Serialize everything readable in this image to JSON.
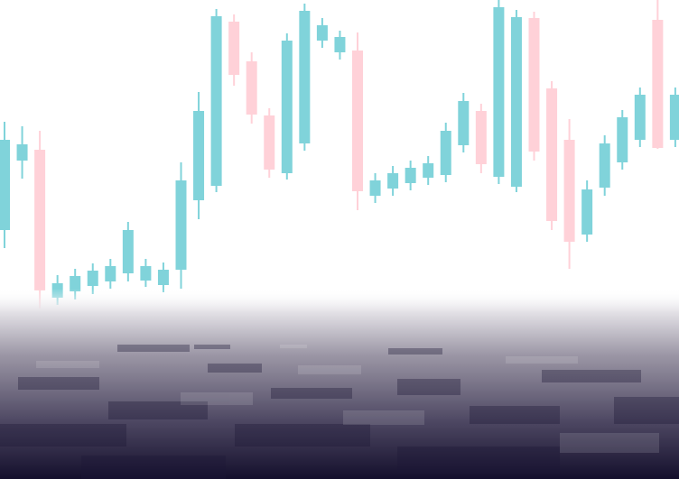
{
  "chart_data": {
    "type": "candlestick",
    "up_color": "#80d3da",
    "down_color": "#ffd1d8",
    "ylim": [
      0,
      531
    ],
    "open": [
      276,
      353,
      365,
      201,
      208,
      214,
      219,
      228,
      220,
      215,
      232,
      309,
      325,
      507,
      463,
      403,
      339,
      372,
      486,
      473,
      475,
      314,
      322,
      328,
      334,
      337,
      370,
      408,
      335,
      324,
      511,
      433,
      376,
      271,
      323,
      351,
      376,
      509,
      376
    ],
    "high": [
      396,
      391,
      386,
      226,
      233,
      239,
      244,
      285,
      244,
      240,
      351,
      429,
      521,
      515,
      473,
      411,
      494,
      527,
      511,
      497,
      495,
      339,
      347,
      353,
      358,
      395,
      428,
      416,
      531,
      520,
      518,
      441,
      399,
      331,
      381,
      409,
      434,
      531,
      434
    ],
    "low": [
      256,
      333,
      189,
      193,
      199,
      205,
      211,
      219,
      213,
      207,
      211,
      288,
      318,
      436,
      394,
      334,
      332,
      364,
      478,
      465,
      298,
      306,
      314,
      320,
      326,
      329,
      362,
      339,
      327,
      318,
      353,
      276,
      233,
      263,
      314,
      343,
      368,
      366,
      368
    ],
    "close": [
      376,
      371,
      209,
      217,
      225,
      231,
      236,
      276,
      236,
      232,
      331,
      408,
      513,
      448,
      404,
      343,
      486,
      519,
      503,
      490,
      319,
      331,
      339,
      345,
      350,
      386,
      419,
      349,
      523,
      512,
      363,
      286,
      263,
      321,
      372,
      401,
      426,
      367,
      426
    ]
  }
}
